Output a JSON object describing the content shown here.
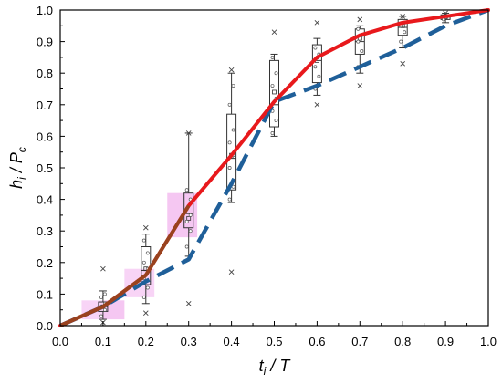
{
  "chart_data": {
    "type": "line",
    "xlabel": {
      "main": "t",
      "sub": "i",
      "rest": " / T"
    },
    "ylabel": {
      "main": "h",
      "sub": "i",
      "mid": " / P",
      "sub2": "c"
    },
    "xlim": [
      0,
      1
    ],
    "ylim": [
      0,
      1
    ],
    "xticks": [
      "0.0",
      "0.1",
      "0.2",
      "0.3",
      "0.4",
      "0.5",
      "0.6",
      "0.7",
      "0.8",
      "0.9",
      "1.0"
    ],
    "yticks": [
      "0.0",
      "0.1",
      "0.2",
      "0.3",
      "0.4",
      "0.5",
      "0.6",
      "0.7",
      "0.8",
      "0.9",
      "1.0"
    ],
    "grid": false,
    "colors": {
      "red_line": "#e8191c",
      "dashed_line": "#1f5f99",
      "brown_overlap": "#8b4a1f",
      "box": "#333333",
      "shade": "#ee99ee"
    },
    "series": [
      {
        "style": "solid-red",
        "x": [
          0.0,
          0.1,
          0.2,
          0.3,
          0.4,
          0.5,
          0.6,
          0.7,
          0.8,
          0.9,
          1.0
        ],
        "y": [
          0.0,
          0.06,
          0.16,
          0.38,
          0.54,
          0.71,
          0.85,
          0.92,
          0.96,
          0.98,
          1.0
        ]
      },
      {
        "style": "dashed-blue",
        "x": [
          0.0,
          0.1,
          0.2,
          0.3,
          0.4,
          0.5,
          0.6,
          0.7,
          0.8,
          0.9,
          1.0
        ],
        "y": [
          0.0,
          0.06,
          0.14,
          0.21,
          0.45,
          0.71,
          0.76,
          0.82,
          0.88,
          0.95,
          1.0
        ]
      }
    ],
    "boxes": [
      {
        "x": 0.1,
        "q1": 0.045,
        "q3": 0.075,
        "median": 0.06,
        "mean": 0.06,
        "wlow": 0.02,
        "whigh": 0.11,
        "outliers": [
          0.18,
          0.01
        ],
        "points": [
          0.03,
          0.05,
          0.06,
          0.07,
          0.09,
          0.1
        ]
      },
      {
        "x": 0.2,
        "q1": 0.13,
        "q3": 0.25,
        "median": 0.175,
        "mean": 0.18,
        "wlow": 0.07,
        "whigh": 0.29,
        "outliers": [
          0.31,
          0.04
        ],
        "points": [
          0.09,
          0.12,
          0.15,
          0.18,
          0.2,
          0.23,
          0.27
        ]
      },
      {
        "x": 0.3,
        "q1": 0.31,
        "q3": 0.42,
        "median": 0.355,
        "mean": 0.34,
        "wlow": 0.22,
        "whigh": 0.61,
        "outliers": [
          0.61,
          0.07
        ],
        "points": [
          0.25,
          0.3,
          0.33,
          0.35,
          0.37,
          0.4,
          0.43
        ]
      },
      {
        "x": 0.4,
        "q1": 0.43,
        "q3": 0.67,
        "median": 0.53,
        "mean": 0.54,
        "wlow": 0.39,
        "whigh": 0.8,
        "outliers": [
          0.81,
          0.17
        ],
        "points": [
          0.4,
          0.44,
          0.5,
          0.54,
          0.58,
          0.62,
          0.7,
          0.76
        ]
      },
      {
        "x": 0.5,
        "q1": 0.63,
        "q3": 0.84,
        "median": 0.7,
        "mean": 0.74,
        "wlow": 0.6,
        "whigh": 0.86,
        "outliers": [
          0.93
        ],
        "points": [
          0.61,
          0.65,
          0.68,
          0.72,
          0.76,
          0.8,
          0.85
        ]
      },
      {
        "x": 0.6,
        "q1": 0.77,
        "q3": 0.89,
        "median": 0.84,
        "mean": 0.84,
        "wlow": 0.73,
        "whigh": 0.91,
        "outliers": [
          0.96,
          0.7
        ],
        "points": [
          0.75,
          0.79,
          0.82,
          0.86,
          0.88
        ]
      },
      {
        "x": 0.7,
        "q1": 0.86,
        "q3": 0.94,
        "median": 0.9,
        "mean": 0.91,
        "wlow": 0.8,
        "whigh": 0.95,
        "outliers": [
          0.97,
          0.76
        ],
        "points": [
          0.82,
          0.87,
          0.9,
          0.92,
          0.94
        ]
      },
      {
        "x": 0.8,
        "q1": 0.92,
        "q3": 0.97,
        "median": 0.945,
        "mean": 0.95,
        "wlow": 0.88,
        "whigh": 0.98,
        "outliers": [
          0.98,
          0.83
        ],
        "points": [
          0.9,
          0.93,
          0.95,
          0.96
        ]
      },
      {
        "x": 0.9,
        "q1": 0.97,
        "q3": 0.985,
        "median": 0.978,
        "mean": 0.978,
        "wlow": 0.96,
        "whigh": 0.99,
        "outliers": [
          0.99
        ],
        "points": [
          0.97,
          0.98
        ]
      }
    ]
  }
}
